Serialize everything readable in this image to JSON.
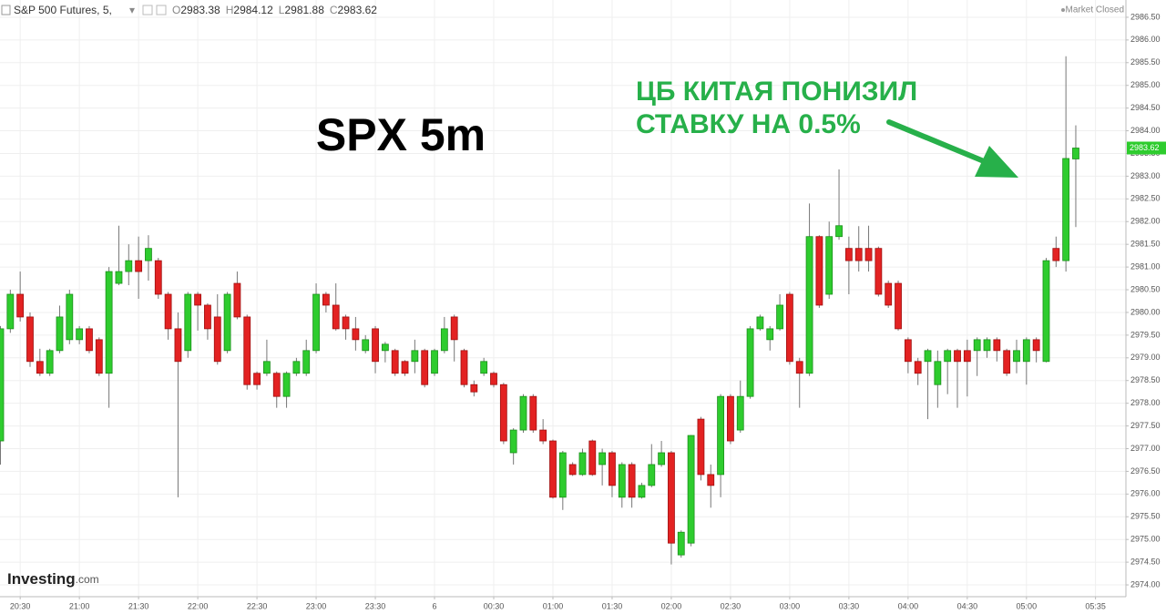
{
  "header": {
    "symbol": "S&P 500 Futures, 5,",
    "open_label": "O",
    "open": 2983.38,
    "high_label": "H",
    "high": 2984.12,
    "low_label": "L",
    "low": 2981.88,
    "close_label": "C",
    "close": 2983.62,
    "status": "Market Closed"
  },
  "logo": {
    "brand": "Investing",
    "suffix": ".com"
  },
  "chart_data": {
    "type": "candlestick",
    "title": "SPX 5m",
    "annotation": [
      "ЦБ КИТАЯ ПОНИЗИЛ",
      "СТАВКУ НА 0.5%"
    ],
    "up_color": "#2ecc2e",
    "down_color": "#e32222",
    "grid": true,
    "last_price": 2983.62,
    "ylim": [
      2973.74,
      2986.88
    ],
    "yticks": [
      {
        "value": 2974,
        "label": "2974.00"
      },
      {
        "value": 2974.5,
        "label": "2974.50"
      },
      {
        "value": 2975,
        "label": "2975.00"
      },
      {
        "value": 2975.5,
        "label": "2975.50"
      },
      {
        "value": 2976,
        "label": "2976.00"
      },
      {
        "value": 2976.5,
        "label": "2976.50"
      },
      {
        "value": 2977,
        "label": "2977.00"
      },
      {
        "value": 2977.5,
        "label": "2977.50"
      },
      {
        "value": 2978,
        "label": "2978.00"
      },
      {
        "value": 2978.5,
        "label": "2978.50"
      },
      {
        "value": 2979,
        "label": "2979.00"
      },
      {
        "value": 2979.5,
        "label": "2979.50"
      },
      {
        "value": 2980,
        "label": "2980.00"
      },
      {
        "value": 2980.5,
        "label": "2980.50"
      },
      {
        "value": 2981,
        "label": "2981.00"
      },
      {
        "value": 2981.5,
        "label": "2981.50"
      },
      {
        "value": 2982,
        "label": "2982.00"
      },
      {
        "value": 2982.5,
        "label": "2982.50"
      },
      {
        "value": 2983,
        "label": "2983.00"
      },
      {
        "value": 2983.5,
        "label": "2983.50"
      },
      {
        "value": 2984,
        "label": "2984.00"
      },
      {
        "value": 2984.5,
        "label": "2984.50"
      },
      {
        "value": 2985,
        "label": "2985.00"
      },
      {
        "value": 2985.5,
        "label": "2985.50"
      },
      {
        "value": 2986,
        "label": "2986.00"
      },
      {
        "value": 2986.5,
        "label": "2986.50"
      }
    ],
    "categories": [
      null,
      null,
      "20:30",
      null,
      null,
      null,
      null,
      null,
      "21:00",
      null,
      null,
      null,
      null,
      null,
      "21:30",
      null,
      null,
      null,
      null,
      null,
      "22:00",
      null,
      null,
      null,
      null,
      null,
      "22:30",
      null,
      null,
      null,
      null,
      null,
      "23:00",
      null,
      null,
      null,
      null,
      null,
      "23:30",
      null,
      null,
      null,
      null,
      null,
      "6",
      null,
      null,
      null,
      null,
      null,
      "00:30",
      null,
      null,
      null,
      null,
      null,
      "01:00",
      null,
      null,
      null,
      null,
      null,
      "01:30",
      null,
      null,
      null,
      null,
      null,
      "02:00",
      null,
      null,
      null,
      null,
      null,
      "02:30",
      null,
      null,
      null,
      null,
      null,
      "03:00",
      null,
      null,
      null,
      null,
      null,
      "03:30",
      null,
      null,
      null,
      null,
      null,
      "04:00",
      null,
      null,
      null,
      null,
      null,
      "04:30",
      null,
      null,
      null,
      null,
      null,
      "05:00",
      null,
      null,
      null,
      null,
      null,
      null,
      "05:35"
    ],
    "ohlc": [
      [
        2977.17,
        2979.7,
        2976.65,
        2979.64
      ],
      [
        2979.64,
        2980.5,
        2979.55,
        2980.4
      ],
      [
        2980.4,
        2980.9,
        2979.8,
        2979.9
      ],
      [
        2979.9,
        2980.0,
        2978.8,
        2978.92
      ],
      [
        2978.92,
        2979.2,
        2978.6,
        2978.66
      ],
      [
        2978.66,
        2979.2,
        2978.6,
        2979.16
      ],
      [
        2979.16,
        2980.15,
        2979.1,
        2979.9
      ],
      [
        2979.4,
        2980.5,
        2979.3,
        2980.4
      ],
      [
        2979.4,
        2979.7,
        2979.3,
        2979.64
      ],
      [
        2979.64,
        2979.7,
        2979.1,
        2979.16
      ],
      [
        2979.4,
        2979.45,
        2978.6,
        2978.66
      ],
      [
        2978.66,
        2981.0,
        2977.9,
        2980.9
      ],
      [
        2980.64,
        2981.91,
        2980.6,
        2980.9
      ],
      [
        2980.9,
        2981.5,
        2980.6,
        2981.14
      ],
      [
        2981.14,
        2981.67,
        2980.3,
        2980.9
      ],
      [
        2981.14,
        2981.7,
        2980.7,
        2981.41
      ],
      [
        2981.14,
        2981.2,
        2980.3,
        2980.4
      ],
      [
        2980.4,
        2980.45,
        2979.4,
        2979.64
      ],
      [
        2979.64,
        2980.0,
        2975.93,
        2978.92
      ],
      [
        2979.16,
        2980.45,
        2979.0,
        2980.4
      ],
      [
        2980.4,
        2980.45,
        2979.6,
        2980.16
      ],
      [
        2980.16,
        2980.2,
        2979.4,
        2979.64
      ],
      [
        2979.9,
        2980.4,
        2978.85,
        2978.92
      ],
      [
        2979.16,
        2980.45,
        2979.1,
        2980.4
      ],
      [
        2980.64,
        2980.9,
        2979.85,
        2979.9
      ],
      [
        2979.9,
        2979.95,
        2978.3,
        2978.41
      ],
      [
        2978.66,
        2978.7,
        2978.3,
        2978.41
      ],
      [
        2978.66,
        2979.4,
        2978.6,
        2978.92
      ],
      [
        2978.66,
        2978.7,
        2977.9,
        2978.15
      ],
      [
        2978.15,
        2978.7,
        2977.9,
        2978.66
      ],
      [
        2978.66,
        2979.0,
        2978.6,
        2978.92
      ],
      [
        2978.66,
        2979.4,
        2978.6,
        2979.16
      ],
      [
        2979.16,
        2980.64,
        2979.1,
        2980.4
      ],
      [
        2980.4,
        2980.45,
        2980.0,
        2980.16
      ],
      [
        2980.16,
        2980.64,
        2979.6,
        2979.64
      ],
      [
        2979.9,
        2979.95,
        2979.4,
        2979.64
      ],
      [
        2979.64,
        2979.9,
        2979.16,
        2979.4
      ],
      [
        2979.16,
        2979.5,
        2979.1,
        2979.4
      ],
      [
        2979.64,
        2979.7,
        2978.66,
        2978.92
      ],
      [
        2979.16,
        2979.35,
        2978.9,
        2979.3
      ],
      [
        2979.16,
        2979.2,
        2978.6,
        2978.66
      ],
      [
        2978.92,
        2978.95,
        2978.6,
        2978.66
      ],
      [
        2978.92,
        2979.4,
        2978.66,
        2979.16
      ],
      [
        2979.16,
        2979.2,
        2978.35,
        2978.41
      ],
      [
        2978.66,
        2979.2,
        2978.6,
        2979.16
      ],
      [
        2979.16,
        2979.9,
        2979.1,
        2979.64
      ],
      [
        2979.9,
        2979.95,
        2978.92,
        2979.4
      ],
      [
        2979.16,
        2979.2,
        2978.35,
        2978.41
      ],
      [
        2978.41,
        2978.5,
        2978.15,
        2978.25
      ],
      [
        2978.66,
        2979.0,
        2978.6,
        2978.92
      ],
      [
        2978.66,
        2978.7,
        2978.35,
        2978.41
      ],
      [
        2978.41,
        2978.45,
        2977.1,
        2977.17
      ],
      [
        2976.91,
        2977.45,
        2976.65,
        2977.41
      ],
      [
        2977.41,
        2978.2,
        2977.35,
        2978.15
      ],
      [
        2978.15,
        2978.2,
        2977.35,
        2977.41
      ],
      [
        2977.41,
        2977.65,
        2977.1,
        2977.17
      ],
      [
        2977.17,
        2977.2,
        2975.9,
        2975.93
      ],
      [
        2975.93,
        2976.95,
        2975.65,
        2976.91
      ],
      [
        2976.65,
        2976.7,
        2976.4,
        2976.43
      ],
      [
        2976.43,
        2977.0,
        2976.4,
        2976.91
      ],
      [
        2977.17,
        2977.2,
        2976.4,
        2976.43
      ],
      [
        2976.65,
        2977.0,
        2976.19,
        2976.91
      ],
      [
        2976.91,
        2976.95,
        2975.93,
        2976.19
      ],
      [
        2975.93,
        2976.7,
        2975.7,
        2976.65
      ],
      [
        2976.65,
        2976.7,
        2975.7,
        2975.93
      ],
      [
        2975.93,
        2976.25,
        2975.9,
        2976.19
      ],
      [
        2976.19,
        2977.1,
        2976.15,
        2976.65
      ],
      [
        2976.65,
        2977.17,
        2976.6,
        2976.91
      ],
      [
        2976.91,
        2976.95,
        2974.45,
        2974.92
      ],
      [
        2974.66,
        2975.2,
        2974.6,
        2975.16
      ],
      [
        2974.92,
        2977.3,
        2974.85,
        2977.29
      ],
      [
        2977.65,
        2977.7,
        2976.3,
        2976.43
      ],
      [
        2976.43,
        2976.65,
        2975.7,
        2976.19
      ],
      [
        2976.43,
        2978.2,
        2975.93,
        2978.15
      ],
      [
        2978.15,
        2978.2,
        2977.1,
        2977.17
      ],
      [
        2977.41,
        2978.5,
        2977.35,
        2978.15
      ],
      [
        2978.15,
        2979.7,
        2978.1,
        2979.64
      ],
      [
        2979.64,
        2979.95,
        2979.6,
        2979.9
      ],
      [
        2979.4,
        2979.7,
        2979.16,
        2979.64
      ],
      [
        2979.64,
        2980.4,
        2979.6,
        2980.16
      ],
      [
        2980.4,
        2980.45,
        2978.85,
        2978.92
      ],
      [
        2978.92,
        2979.0,
        2977.9,
        2978.66
      ],
      [
        2978.66,
        2982.4,
        2978.6,
        2981.67
      ],
      [
        2981.67,
        2981.7,
        2980.1,
        2980.16
      ],
      [
        2980.4,
        2982.0,
        2980.3,
        2981.67
      ],
      [
        2981.67,
        2983.15,
        2981.6,
        2981.91
      ],
      [
        2981.41,
        2981.67,
        2980.4,
        2981.14
      ],
      [
        2981.41,
        2981.9,
        2980.9,
        2981.14
      ],
      [
        2981.41,
        2981.91,
        2980.9,
        2981.14
      ],
      [
        2981.41,
        2981.45,
        2980.35,
        2980.4
      ],
      [
        2980.64,
        2980.7,
        2980.1,
        2980.16
      ],
      [
        2980.64,
        2980.7,
        2979.6,
        2979.64
      ],
      [
        2979.4,
        2979.45,
        2978.66,
        2978.92
      ],
      [
        2978.92,
        2979.0,
        2978.4,
        2978.66
      ],
      [
        2978.92,
        2979.2,
        2977.65,
        2979.16
      ],
      [
        2978.41,
        2979.16,
        2977.9,
        2978.92
      ],
      [
        2978.92,
        2979.2,
        2978.2,
        2979.16
      ],
      [
        2979.16,
        2979.2,
        2977.9,
        2978.92
      ],
      [
        2979.16,
        2979.4,
        2978.15,
        2978.92
      ],
      [
        2979.16,
        2979.45,
        2978.6,
        2979.4
      ],
      [
        2979.16,
        2979.45,
        2979.0,
        2979.4
      ],
      [
        2979.4,
        2979.45,
        2978.92,
        2979.16
      ],
      [
        2979.16,
        2979.2,
        2978.6,
        2978.66
      ],
      [
        2978.92,
        2979.4,
        2978.66,
        2979.16
      ],
      [
        2978.92,
        2979.45,
        2978.41,
        2979.4
      ],
      [
        2979.4,
        2979.45,
        2978.9,
        2979.16
      ],
      [
        2978.92,
        2981.2,
        2978.9,
        2981.14
      ],
      [
        2981.41,
        2981.67,
        2981.0,
        2981.14
      ],
      [
        2981.14,
        2985.64,
        2980.9,
        2983.39
      ],
      [
        2983.38,
        2984.12,
        2981.88,
        2983.62
      ],
      null,
      null
    ]
  }
}
